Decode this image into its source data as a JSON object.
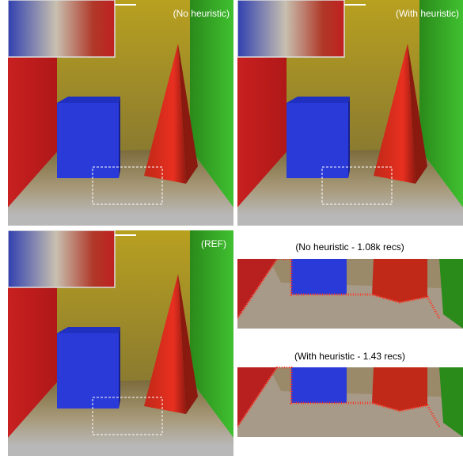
{
  "panels": [
    {
      "label": "(No heuristic)"
    },
    {
      "label": "(With heuristic)"
    },
    {
      "label": "(REF)"
    }
  ],
  "crops": [
    {
      "caption": "(No heuristic - 1.08k recs)"
    },
    {
      "caption": "(With heuristic - 1.43 recs)"
    }
  ]
}
